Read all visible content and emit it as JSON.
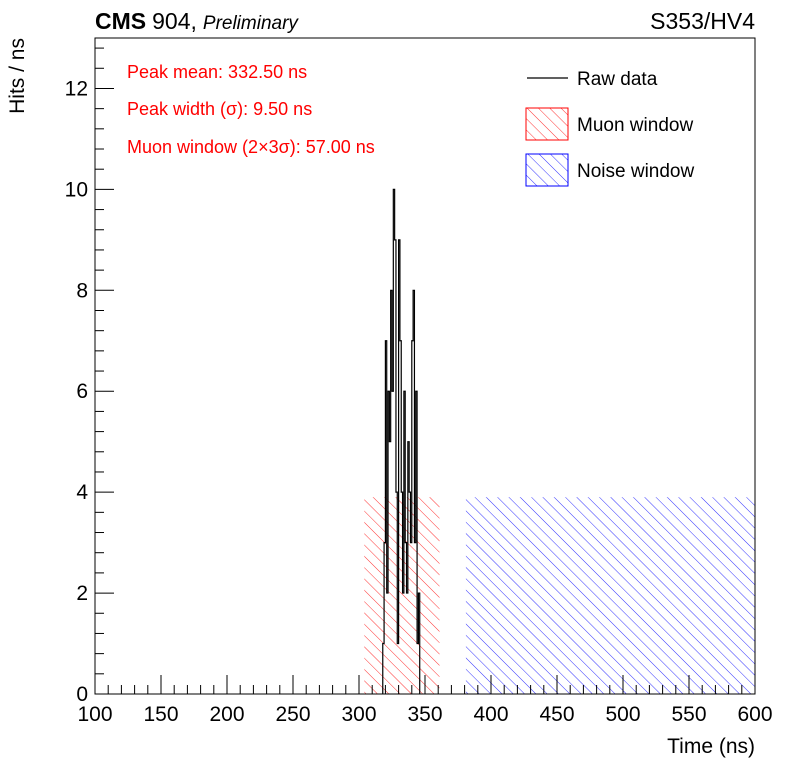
{
  "header": {
    "experiment": "CMS",
    "facility": "904,",
    "status": "Preliminary",
    "run_label": "S353/HV4"
  },
  "annotations": [
    "Peak mean: 332.50 ns",
    "Peak width (σ): 9.50 ns",
    "Muon window (2×3σ): 57.00 ns"
  ],
  "legend": {
    "position": "top-right",
    "items": [
      {
        "label": "Raw data",
        "style": "line",
        "color": "#000000"
      },
      {
        "label": "Muon window",
        "style": "hatch",
        "color": "#ff0000"
      },
      {
        "label": "Noise window",
        "style": "hatch",
        "color": "#0000ff"
      }
    ]
  },
  "colors": {
    "annotation": "#ff0000",
    "muon_window": "#ff0000",
    "noise_window": "#0000ff",
    "raw_data": "#000000"
  },
  "chart_data": {
    "type": "histogram",
    "xlabel": "Time (ns)",
    "ylabel": "Hits / ns",
    "xlim": [
      100,
      600
    ],
    "ylim": [
      0,
      13
    ],
    "x_ticks": [
      100,
      150,
      200,
      250,
      300,
      350,
      400,
      450,
      500,
      550,
      600
    ],
    "y_ticks": [
      0,
      2,
      4,
      6,
      8,
      10,
      12
    ],
    "grid": false,
    "bin_width": 1,
    "raw_data": {
      "name": "Raw data",
      "bins": [
        [
          318,
          1
        ],
        [
          319,
          3
        ],
        [
          320,
          7
        ],
        [
          321,
          2
        ],
        [
          322,
          6
        ],
        [
          323,
          5
        ],
        [
          324,
          8
        ],
        [
          325,
          6
        ],
        [
          326,
          10
        ],
        [
          327,
          9
        ],
        [
          328,
          4
        ],
        [
          329,
          1
        ],
        [
          330,
          9
        ],
        [
          331,
          7
        ],
        [
          332,
          4
        ],
        [
          333,
          2
        ],
        [
          334,
          6
        ],
        [
          335,
          3
        ],
        [
          336,
          2
        ],
        [
          337,
          5
        ],
        [
          338,
          4
        ],
        [
          339,
          3
        ],
        [
          340,
          7
        ],
        [
          341,
          8
        ],
        [
          342,
          3
        ],
        [
          343,
          6
        ],
        [
          344,
          1
        ],
        [
          345,
          2
        ]
      ]
    },
    "windows": [
      {
        "name": "Muon window",
        "x0": 304,
        "x1": 361,
        "y": 3.9
      },
      {
        "name": "Noise window",
        "x0": 381,
        "x1": 600,
        "y": 3.9
      }
    ]
  }
}
